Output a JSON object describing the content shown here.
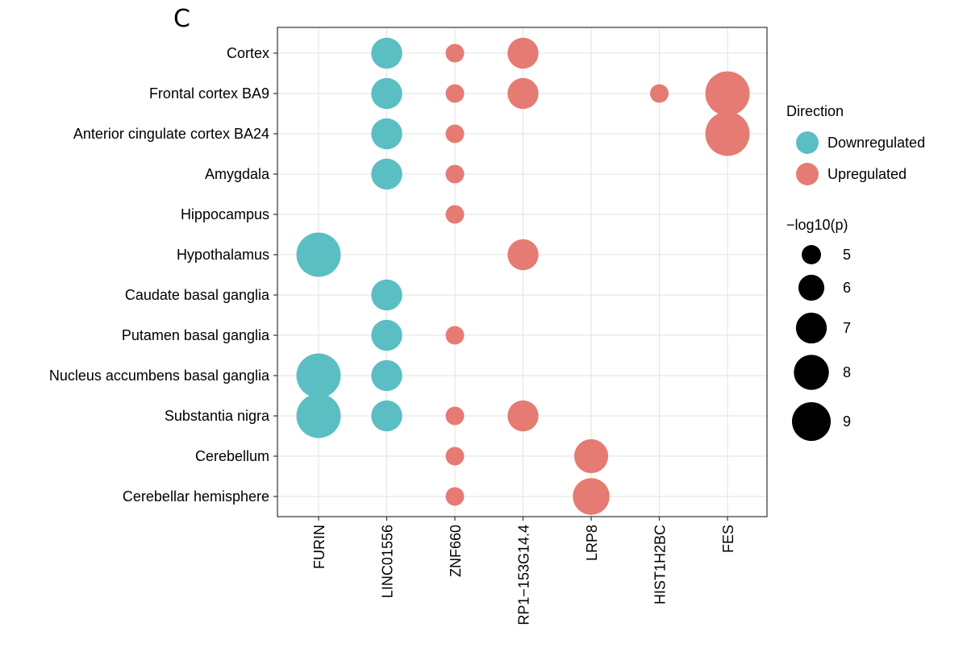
{
  "panel_label": "C",
  "chart_data": {
    "type": "scatter",
    "title": "",
    "xlabel": "",
    "ylabel": "",
    "x_categories": [
      "FURIN",
      "LINC01556",
      "ZNF660",
      "RP1−153G14.4",
      "LRP8",
      "HIST1H2BC",
      "FES"
    ],
    "y_categories": [
      "Cortex",
      "Frontal cortex BA9",
      "Anterior cingulate cortex BA24",
      "Amygdala",
      "Hippocampus",
      "Hypothalamus",
      "Caudate basal ganglia",
      "Putamen basal ganglia",
      "Nucleus accumbens basal ganglia",
      "Substantia nigra",
      "Cerebellum",
      "Cerebellar hemisphere"
    ],
    "grid": true,
    "legend_position": "right",
    "color_legend": {
      "title": "Direction",
      "entries": [
        {
          "label": "Downregulated",
          "color": "#5bbec3"
        },
        {
          "label": "Upregulated",
          "color": "#e57b72"
        }
      ]
    },
    "size_legend": {
      "title": "−log10(p)",
      "values": [
        5,
        6,
        7,
        8,
        9
      ]
    },
    "points": [
      {
        "x": "LINC01556",
        "y": "Cortex",
        "direction": "Downregulated",
        "neglog10p": 6.6
      },
      {
        "x": "ZNF660",
        "y": "Cortex",
        "direction": "Upregulated",
        "neglog10p": 5.0
      },
      {
        "x": "RP1−153G14.4",
        "y": "Cortex",
        "direction": "Upregulated",
        "neglog10p": 6.6
      },
      {
        "x": "LINC01556",
        "y": "Frontal cortex BA9",
        "direction": "Downregulated",
        "neglog10p": 6.6
      },
      {
        "x": "ZNF660",
        "y": "Frontal cortex BA9",
        "direction": "Upregulated",
        "neglog10p": 5.0
      },
      {
        "x": "RP1−153G14.4",
        "y": "Frontal cortex BA9",
        "direction": "Upregulated",
        "neglog10p": 6.6
      },
      {
        "x": "HIST1H2BC",
        "y": "Frontal cortex BA9",
        "direction": "Upregulated",
        "neglog10p": 5.0
      },
      {
        "x": "FES",
        "y": "Frontal cortex BA9",
        "direction": "Upregulated",
        "neglog10p": 9.2
      },
      {
        "x": "LINC01556",
        "y": "Anterior cingulate cortex BA24",
        "direction": "Downregulated",
        "neglog10p": 6.6
      },
      {
        "x": "ZNF660",
        "y": "Anterior cingulate cortex BA24",
        "direction": "Upregulated",
        "neglog10p": 5.0
      },
      {
        "x": "FES",
        "y": "Anterior cingulate cortex BA24",
        "direction": "Upregulated",
        "neglog10p": 9.2
      },
      {
        "x": "LINC01556",
        "y": "Amygdala",
        "direction": "Downregulated",
        "neglog10p": 6.6
      },
      {
        "x": "ZNF660",
        "y": "Amygdala",
        "direction": "Upregulated",
        "neglog10p": 5.0
      },
      {
        "x": "ZNF660",
        "y": "Hippocampus",
        "direction": "Upregulated",
        "neglog10p": 5.0
      },
      {
        "x": "FURIN",
        "y": "Hypothalamus",
        "direction": "Downregulated",
        "neglog10p": 9.2
      },
      {
        "x": "RP1−153G14.4",
        "y": "Hypothalamus",
        "direction": "Upregulated",
        "neglog10p": 6.6
      },
      {
        "x": "LINC01556",
        "y": "Caudate basal ganglia",
        "direction": "Downregulated",
        "neglog10p": 6.6
      },
      {
        "x": "LINC01556",
        "y": "Putamen basal ganglia",
        "direction": "Downregulated",
        "neglog10p": 6.6
      },
      {
        "x": "ZNF660",
        "y": "Putamen basal ganglia",
        "direction": "Upregulated",
        "neglog10p": 5.0
      },
      {
        "x": "FURIN",
        "y": "Nucleus accumbens basal ganglia",
        "direction": "Downregulated",
        "neglog10p": 9.2
      },
      {
        "x": "LINC01556",
        "y": "Nucleus accumbens basal ganglia",
        "direction": "Downregulated",
        "neglog10p": 6.6
      },
      {
        "x": "FURIN",
        "y": "Substantia nigra",
        "direction": "Downregulated",
        "neglog10p": 9.2
      },
      {
        "x": "LINC01556",
        "y": "Substantia nigra",
        "direction": "Downregulated",
        "neglog10p": 6.6
      },
      {
        "x": "ZNF660",
        "y": "Substantia nigra",
        "direction": "Upregulated",
        "neglog10p": 5.0
      },
      {
        "x": "RP1−153G14.4",
        "y": "Substantia nigra",
        "direction": "Upregulated",
        "neglog10p": 6.6
      },
      {
        "x": "ZNF660",
        "y": "Cerebellum",
        "direction": "Upregulated",
        "neglog10p": 5.0
      },
      {
        "x": "LRP8",
        "y": "Cerebellum",
        "direction": "Upregulated",
        "neglog10p": 7.1
      },
      {
        "x": "ZNF660",
        "y": "Cerebellar hemisphere",
        "direction": "Upregulated",
        "neglog10p": 5.0
      },
      {
        "x": "LRP8",
        "y": "Cerebellar hemisphere",
        "direction": "Upregulated",
        "neglog10p": 7.6
      }
    ]
  }
}
